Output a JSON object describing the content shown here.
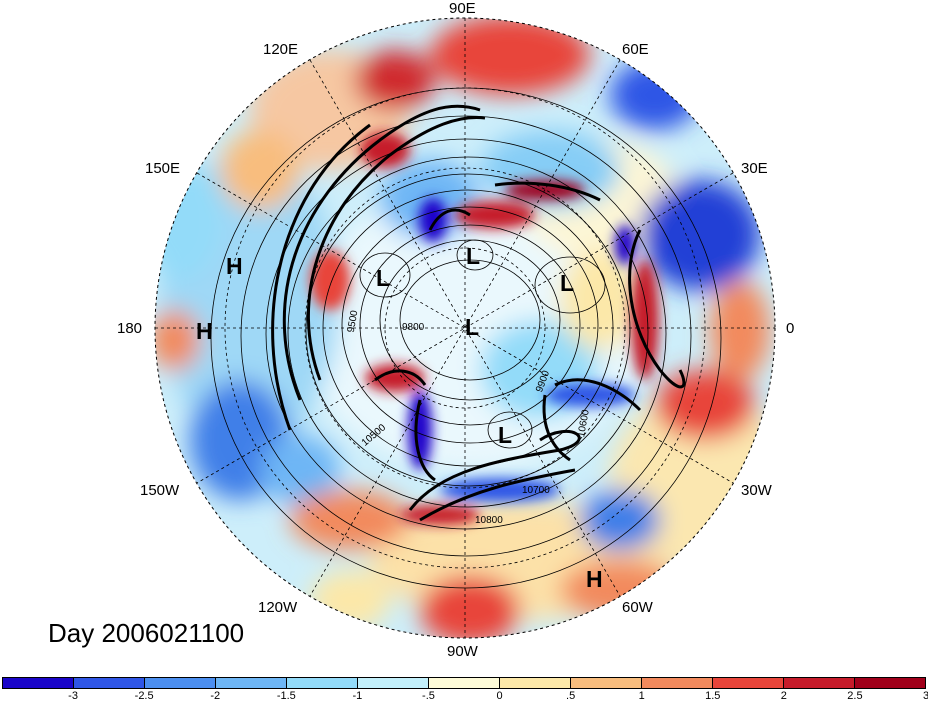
{
  "title": "Day 2006021100",
  "longitude_labels": {
    "lon_90E": "90E",
    "lon_60E": "60E",
    "lon_30E": "30E",
    "lon_0": "0",
    "lon_30W": "30W",
    "lon_60W": "60W",
    "lon_90W": "90W",
    "lon_120W": "120W",
    "lon_150W": "150W",
    "lon_180": "180",
    "lon_150E": "150E",
    "lon_120E": "120E"
  },
  "pressure_systems": {
    "h1": "H",
    "h2": "H",
    "h3": "H",
    "l1": "L",
    "l2": "L",
    "l3": "L",
    "l4": "L",
    "l5": "L"
  },
  "contour_labels": {
    "c9500": "9500",
    "c9800": "9800",
    "c9900": "9900",
    "c10500": "10500",
    "c10600": "10600",
    "c10700": "10700",
    "c10800": "10800"
  },
  "colorbar": {
    "colors": [
      "#1a05c9",
      "#2f56e6",
      "#4c8ff0",
      "#6eb6f5",
      "#93dbf9",
      "#c3f0fb",
      "#fdfbd8",
      "#fce8a9",
      "#f8bd7e",
      "#f28a5d",
      "#e8453a",
      "#c61b2a",
      "#a0001a"
    ],
    "ticks": [
      "-3",
      "-2.5",
      "-2",
      "-1.5",
      "-1",
      "-.5",
      "0",
      ".5",
      "1",
      "1.5",
      "2",
      "2.5",
      "3"
    ]
  },
  "colors": {
    "strong_negative": "#1a05c9",
    "negative": "#4c8ff0",
    "neutral": "#fdfbd8",
    "positive": "#f28a5d",
    "strong_positive": "#a0001a"
  }
}
